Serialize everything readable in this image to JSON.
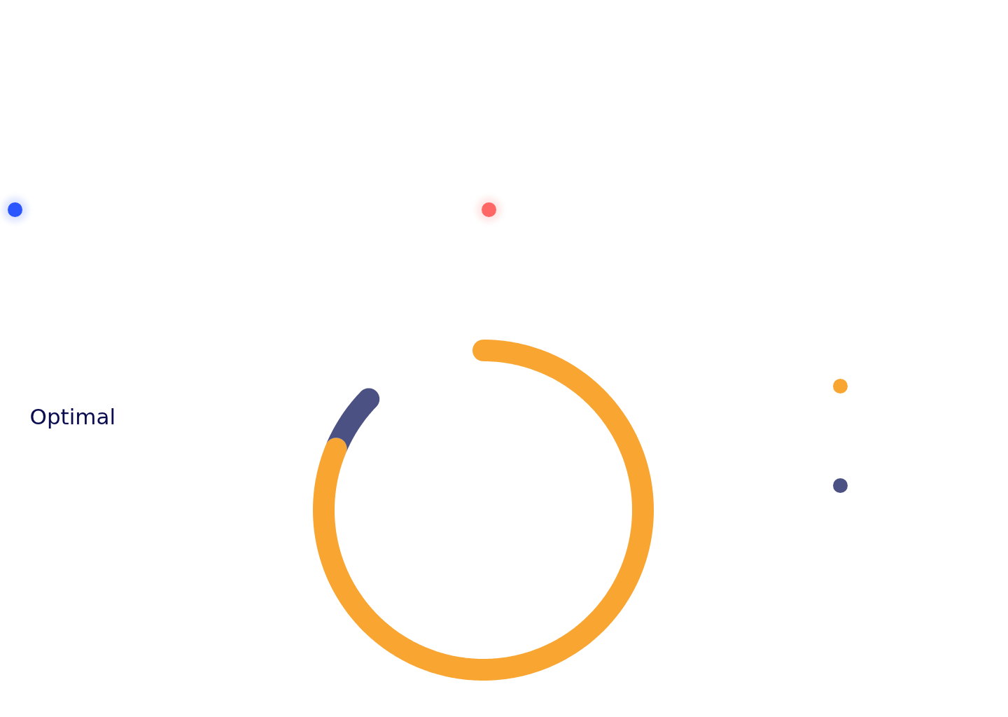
{
  "chart_data": {
    "type": "donut",
    "categories": [
      null,
      null
    ],
    "values": [
      93.3,
      6.7
    ],
    "colors": [
      "#f9a532",
      "#4b5283"
    ],
    "annotations": [
      "Optimal"
    ]
  }
}
